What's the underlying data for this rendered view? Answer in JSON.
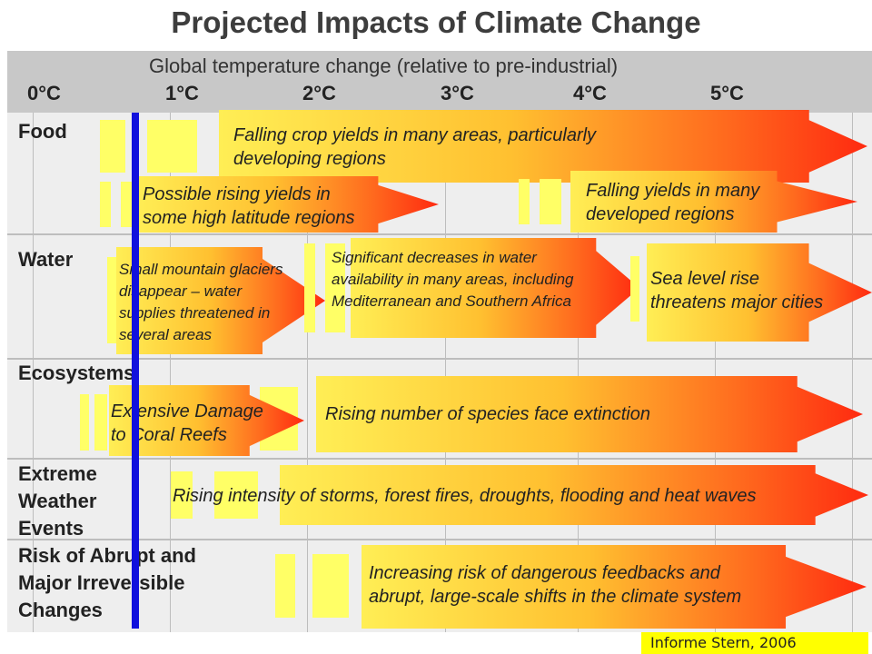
{
  "title": "Projected Impacts of Climate Change",
  "axis": {
    "subtitle": "Global temperature change (relative to pre-industrial)",
    "ticks": [
      "0°C",
      "1°C",
      "2°C",
      "3°C",
      "4°C",
      "5°C"
    ]
  },
  "categories": {
    "food": "Food",
    "water": "Water",
    "ecosystems": "Ecosystems",
    "extreme_weather": [
      "Extreme",
      "Weather",
      "Events"
    ],
    "abrupt_changes": [
      "Risk of Abrupt and",
      "Major Irreversible",
      "Changes"
    ]
  },
  "impacts": {
    "food_falling_crop": [
      "Falling crop yields in many areas, particularly",
      "developing regions"
    ],
    "food_rising_yields": [
      "Possible rising yields in",
      "some high latitude regions"
    ],
    "food_falling_developed": [
      "Falling yields in many",
      "developed regions"
    ],
    "water_glaciers": [
      "Small mountain glaciers",
      "disappear  – water",
      "supplies threatened in",
      "several areas"
    ],
    "water_decreases": [
      "Significant decreases in water",
      "availability in many areas, including",
      "Mediterranean and Southern Africa"
    ],
    "water_sea_level": [
      "Sea level rise",
      "threatens major cities"
    ],
    "eco_coral": [
      "Extensive Damage",
      "to Coral Reefs"
    ],
    "eco_species": "Rising number of species face extinction",
    "weather_storms": "Rising intensity of storms, forest fires, droughts, flooding and heat waves",
    "abrupt_feedbacks": [
      "Increasing risk of dangerous feedbacks and",
      "abrupt, large-scale shifts in the climate system"
    ]
  },
  "marker": {
    "color": "#1111dd",
    "position_celsius": 0.75
  },
  "source": "Informe Stern, 2006"
}
